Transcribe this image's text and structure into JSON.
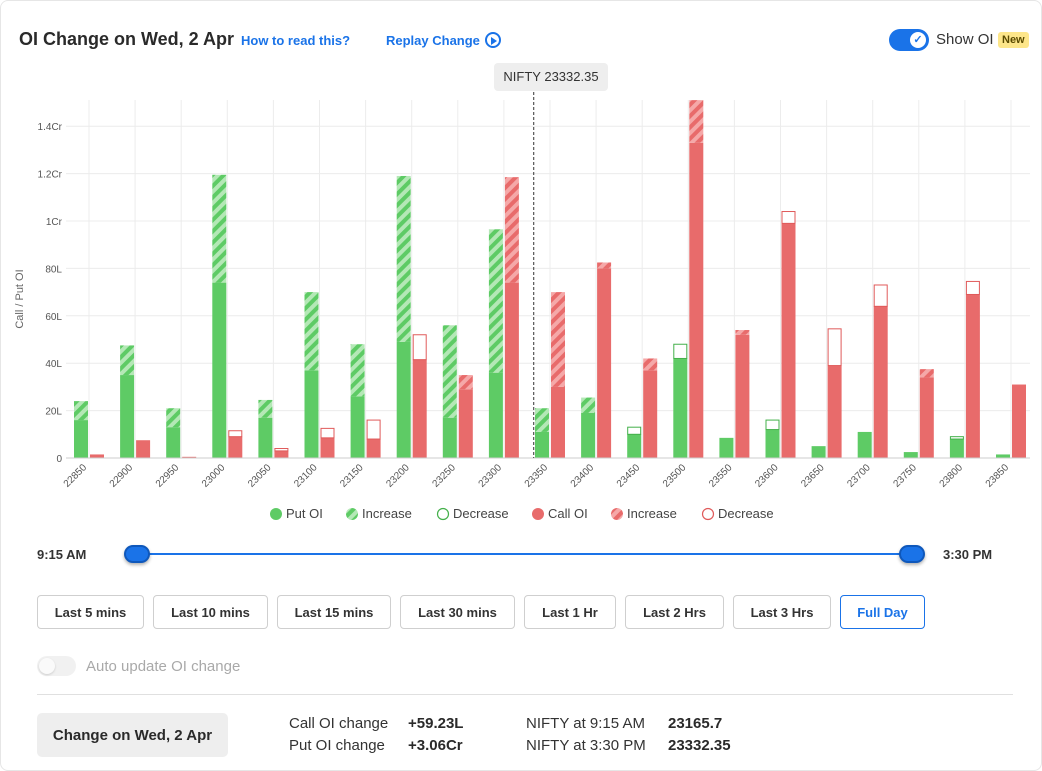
{
  "header": {
    "title": "OI Change on Wed, 2 Apr",
    "how_to_read": "How to read this?",
    "replay": "Replay Change",
    "show_oi": "Show OI",
    "new_badge": "New",
    "toggle_check": "✓"
  },
  "nifty_marker": "NIFTY 23332.35",
  "chart_data": {
    "type": "bar",
    "ylabel": "Call / Put OI",
    "ylim": [
      0,
      1.5
    ],
    "y_unit": "Cr",
    "yticks": [
      {
        "v": 0,
        "label": "0"
      },
      {
        "v": 0.2,
        "label": "20L"
      },
      {
        "v": 0.4,
        "label": "40L"
      },
      {
        "v": 0.6,
        "label": "60L"
      },
      {
        "v": 0.8,
        "label": "80L"
      },
      {
        "v": 1.0,
        "label": "1Cr"
      },
      {
        "v": 1.2,
        "label": "1.2Cr"
      },
      {
        "v": 1.4,
        "label": "1.4Cr"
      }
    ],
    "categories": [
      "22850",
      "22900",
      "22950",
      "23000",
      "23050",
      "23100",
      "23150",
      "23200",
      "23250",
      "23300",
      "23350",
      "23400",
      "23450",
      "23500",
      "23550",
      "23600",
      "23650",
      "23700",
      "23750",
      "23800",
      "23850"
    ],
    "spot_strike": 23332.35,
    "series": [
      {
        "name": "Put OI",
        "values": [
          0.16,
          0.35,
          0.13,
          0.74,
          0.17,
          0.37,
          0.26,
          0.49,
          0.17,
          0.36,
          0.11,
          0.19,
          0.1,
          0.42,
          0.085,
          0.12,
          0.05,
          0.11,
          0.025,
          0.08,
          0.015
        ]
      },
      {
        "name": "Increase",
        "values": [
          0.08,
          0.125,
          0.08,
          0.455,
          0.075,
          0.33,
          0.22,
          0.7,
          0.39,
          0.605,
          0.1,
          0.065,
          0,
          0,
          0,
          0,
          0,
          0,
          0,
          0,
          0
        ]
      },
      {
        "name": "Decrease",
        "values": [
          0,
          0,
          0,
          0,
          0,
          0,
          0,
          0,
          0,
          0,
          0,
          0,
          0.03,
          0.06,
          0,
          0.04,
          0,
          0,
          0,
          0.01,
          0
        ]
      },
      {
        "name": "Call OI",
        "values": [
          0.015,
          0.075,
          0.005,
          0.09,
          0.03,
          0.085,
          0.08,
          0.415,
          0.29,
          0.74,
          0.3,
          0.8,
          0.37,
          1.33,
          0.52,
          0.99,
          0.39,
          0.64,
          0.34,
          0.69,
          0.31
        ]
      },
      {
        "name": "Increase",
        "values": [
          0,
          0,
          0,
          0,
          0,
          0,
          0,
          0,
          0.06,
          0.445,
          0.4,
          0.025,
          0.05,
          0.18,
          0.02,
          0,
          0,
          0,
          0.035,
          0,
          0
        ]
      },
      {
        "name": "Decrease",
        "values": [
          0,
          0,
          0,
          0.025,
          0.01,
          0.04,
          0.08,
          0.105,
          0,
          0,
          0,
          0,
          0,
          0,
          0,
          0.05,
          0.155,
          0.09,
          0,
          0.055,
          0
        ]
      }
    ],
    "legend": [
      "Put OI",
      "Increase",
      "Decrease",
      "Call OI",
      "Increase",
      "Decrease"
    ],
    "colors": {
      "put": "#5ecb65",
      "put_light": "#b4e8b6",
      "put_outline": "#43b04a",
      "call": "#e86b6b",
      "call_light": "#f5a8a8",
      "call_outline": "#e05a5a",
      "grid": "#ececec"
    }
  },
  "time_range": {
    "start": "9:15 AM",
    "end": "3:30 PM",
    "start_fraction": 0,
    "end_fraction": 1
  },
  "range_buttons": [
    "Last 5 mins",
    "Last 10 mins",
    "Last 15 mins",
    "Last 30 mins",
    "Last 1 Hr",
    "Last 2 Hrs",
    "Last 3 Hrs",
    "Full Day"
  ],
  "active_range": "Full Day",
  "auto_update": {
    "label": "Auto update OI change",
    "enabled": false
  },
  "summary": {
    "button": "Change on Wed, 2 Apr",
    "call_label": "Call OI change",
    "call_value": "+59.23L",
    "put_label": "Put OI change",
    "put_value": "+3.06Cr",
    "nifty_open_label": "NIFTY at 9:15 AM",
    "nifty_open_value": "23165.7",
    "nifty_close_label": "NIFTY at 3:30 PM",
    "nifty_close_value": "23332.35"
  }
}
